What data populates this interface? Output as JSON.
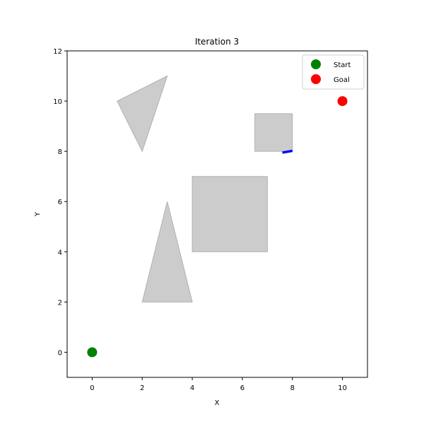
{
  "chart_data": {
    "type": "scatter",
    "title": "Iteration 3",
    "xlabel": "X",
    "ylabel": "Y",
    "xlim": [
      -1,
      11
    ],
    "ylim": [
      -1,
      12
    ],
    "xticks": [
      0,
      2,
      4,
      6,
      8,
      10
    ],
    "yticks": [
      0,
      2,
      4,
      6,
      8,
      10,
      12
    ],
    "grid": false,
    "legend_position": "top-right",
    "series": [
      {
        "name": "Start",
        "x": [
          0
        ],
        "y": [
          0
        ],
        "color": "#008000"
      },
      {
        "name": "Goal",
        "x": [
          10
        ],
        "y": [
          10
        ],
        "color": "#ff0000"
      }
    ],
    "path": {
      "x": [
        7.6,
        8.0
      ],
      "y": [
        7.95,
        8.02
      ],
      "color": "#0000ff"
    },
    "obstacles": [
      {
        "shape": "polygon",
        "points": [
          [
            1,
            10
          ],
          [
            3,
            11
          ],
          [
            2,
            8
          ]
        ]
      },
      {
        "shape": "polygon",
        "points": [
          [
            6.5,
            8
          ],
          [
            8,
            8
          ],
          [
            8,
            9.5
          ],
          [
            6.5,
            9.5
          ]
        ]
      },
      {
        "shape": "polygon",
        "points": [
          [
            4,
            4
          ],
          [
            7,
            4
          ],
          [
            7,
            7
          ],
          [
            4,
            7
          ]
        ]
      },
      {
        "shape": "polygon",
        "points": [
          [
            2,
            2
          ],
          [
            4,
            2
          ],
          [
            3,
            6
          ]
        ]
      }
    ],
    "obstacle_fill": "#cccccc",
    "obstacle_edge": "#b0b0b0"
  }
}
